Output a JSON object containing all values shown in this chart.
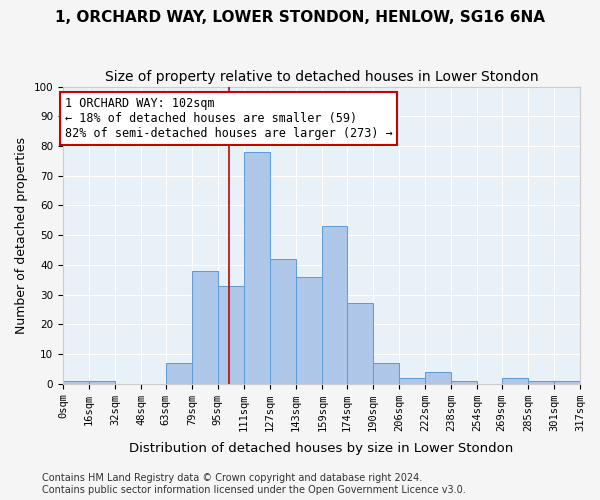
{
  "title": "1, ORCHARD WAY, LOWER STONDON, HENLOW, SG16 6NA",
  "subtitle": "Size of property relative to detached houses in Lower Stondon",
  "xlabel": "Distribution of detached houses by size in Lower Stondon",
  "ylabel": "Number of detached properties",
  "bar_values": [
    1,
    1,
    0,
    0,
    7,
    38,
    33,
    78,
    42,
    36,
    53,
    27,
    7,
    2,
    4,
    1,
    0,
    2,
    1,
    1
  ],
  "bin_edges": [
    0,
    16,
    32,
    48,
    63,
    79,
    95,
    111,
    127,
    143,
    159,
    174,
    190,
    206,
    222,
    238,
    254,
    269,
    285,
    301,
    317
  ],
  "x_tick_labels": [
    "0sqm",
    "16sqm",
    "32sqm",
    "48sqm",
    "63sqm",
    "79sqm",
    "95sqm",
    "111sqm",
    "127sqm",
    "143sqm",
    "159sqm",
    "174sqm",
    "190sqm",
    "206sqm",
    "222sqm",
    "238sqm",
    "254sqm",
    "269sqm",
    "285sqm",
    "301sqm",
    "317sqm"
  ],
  "bar_color": "#aec6e8",
  "bar_edge_color": "#5b9bd5",
  "background_color": "#e8f0f8",
  "grid_color": "#ffffff",
  "red_line_x": 102,
  "annotation_text": "1 ORCHARD WAY: 102sqm\n← 18% of detached houses are smaller (59)\n82% of semi-detached houses are larger (273) →",
  "annotation_box_color": "#ffffff",
  "annotation_box_edge_color": "#cc0000",
  "ylim": [
    0,
    100
  ],
  "yticks": [
    0,
    10,
    20,
    30,
    40,
    50,
    60,
    70,
    80,
    90,
    100
  ],
  "footer_text": "Contains HM Land Registry data © Crown copyright and database right 2024.\nContains public sector information licensed under the Open Government Licence v3.0.",
  "title_fontsize": 11,
  "subtitle_fontsize": 10,
  "axis_label_fontsize": 9,
  "tick_fontsize": 7.5,
  "annotation_fontsize": 8.5,
  "footer_fontsize": 7
}
